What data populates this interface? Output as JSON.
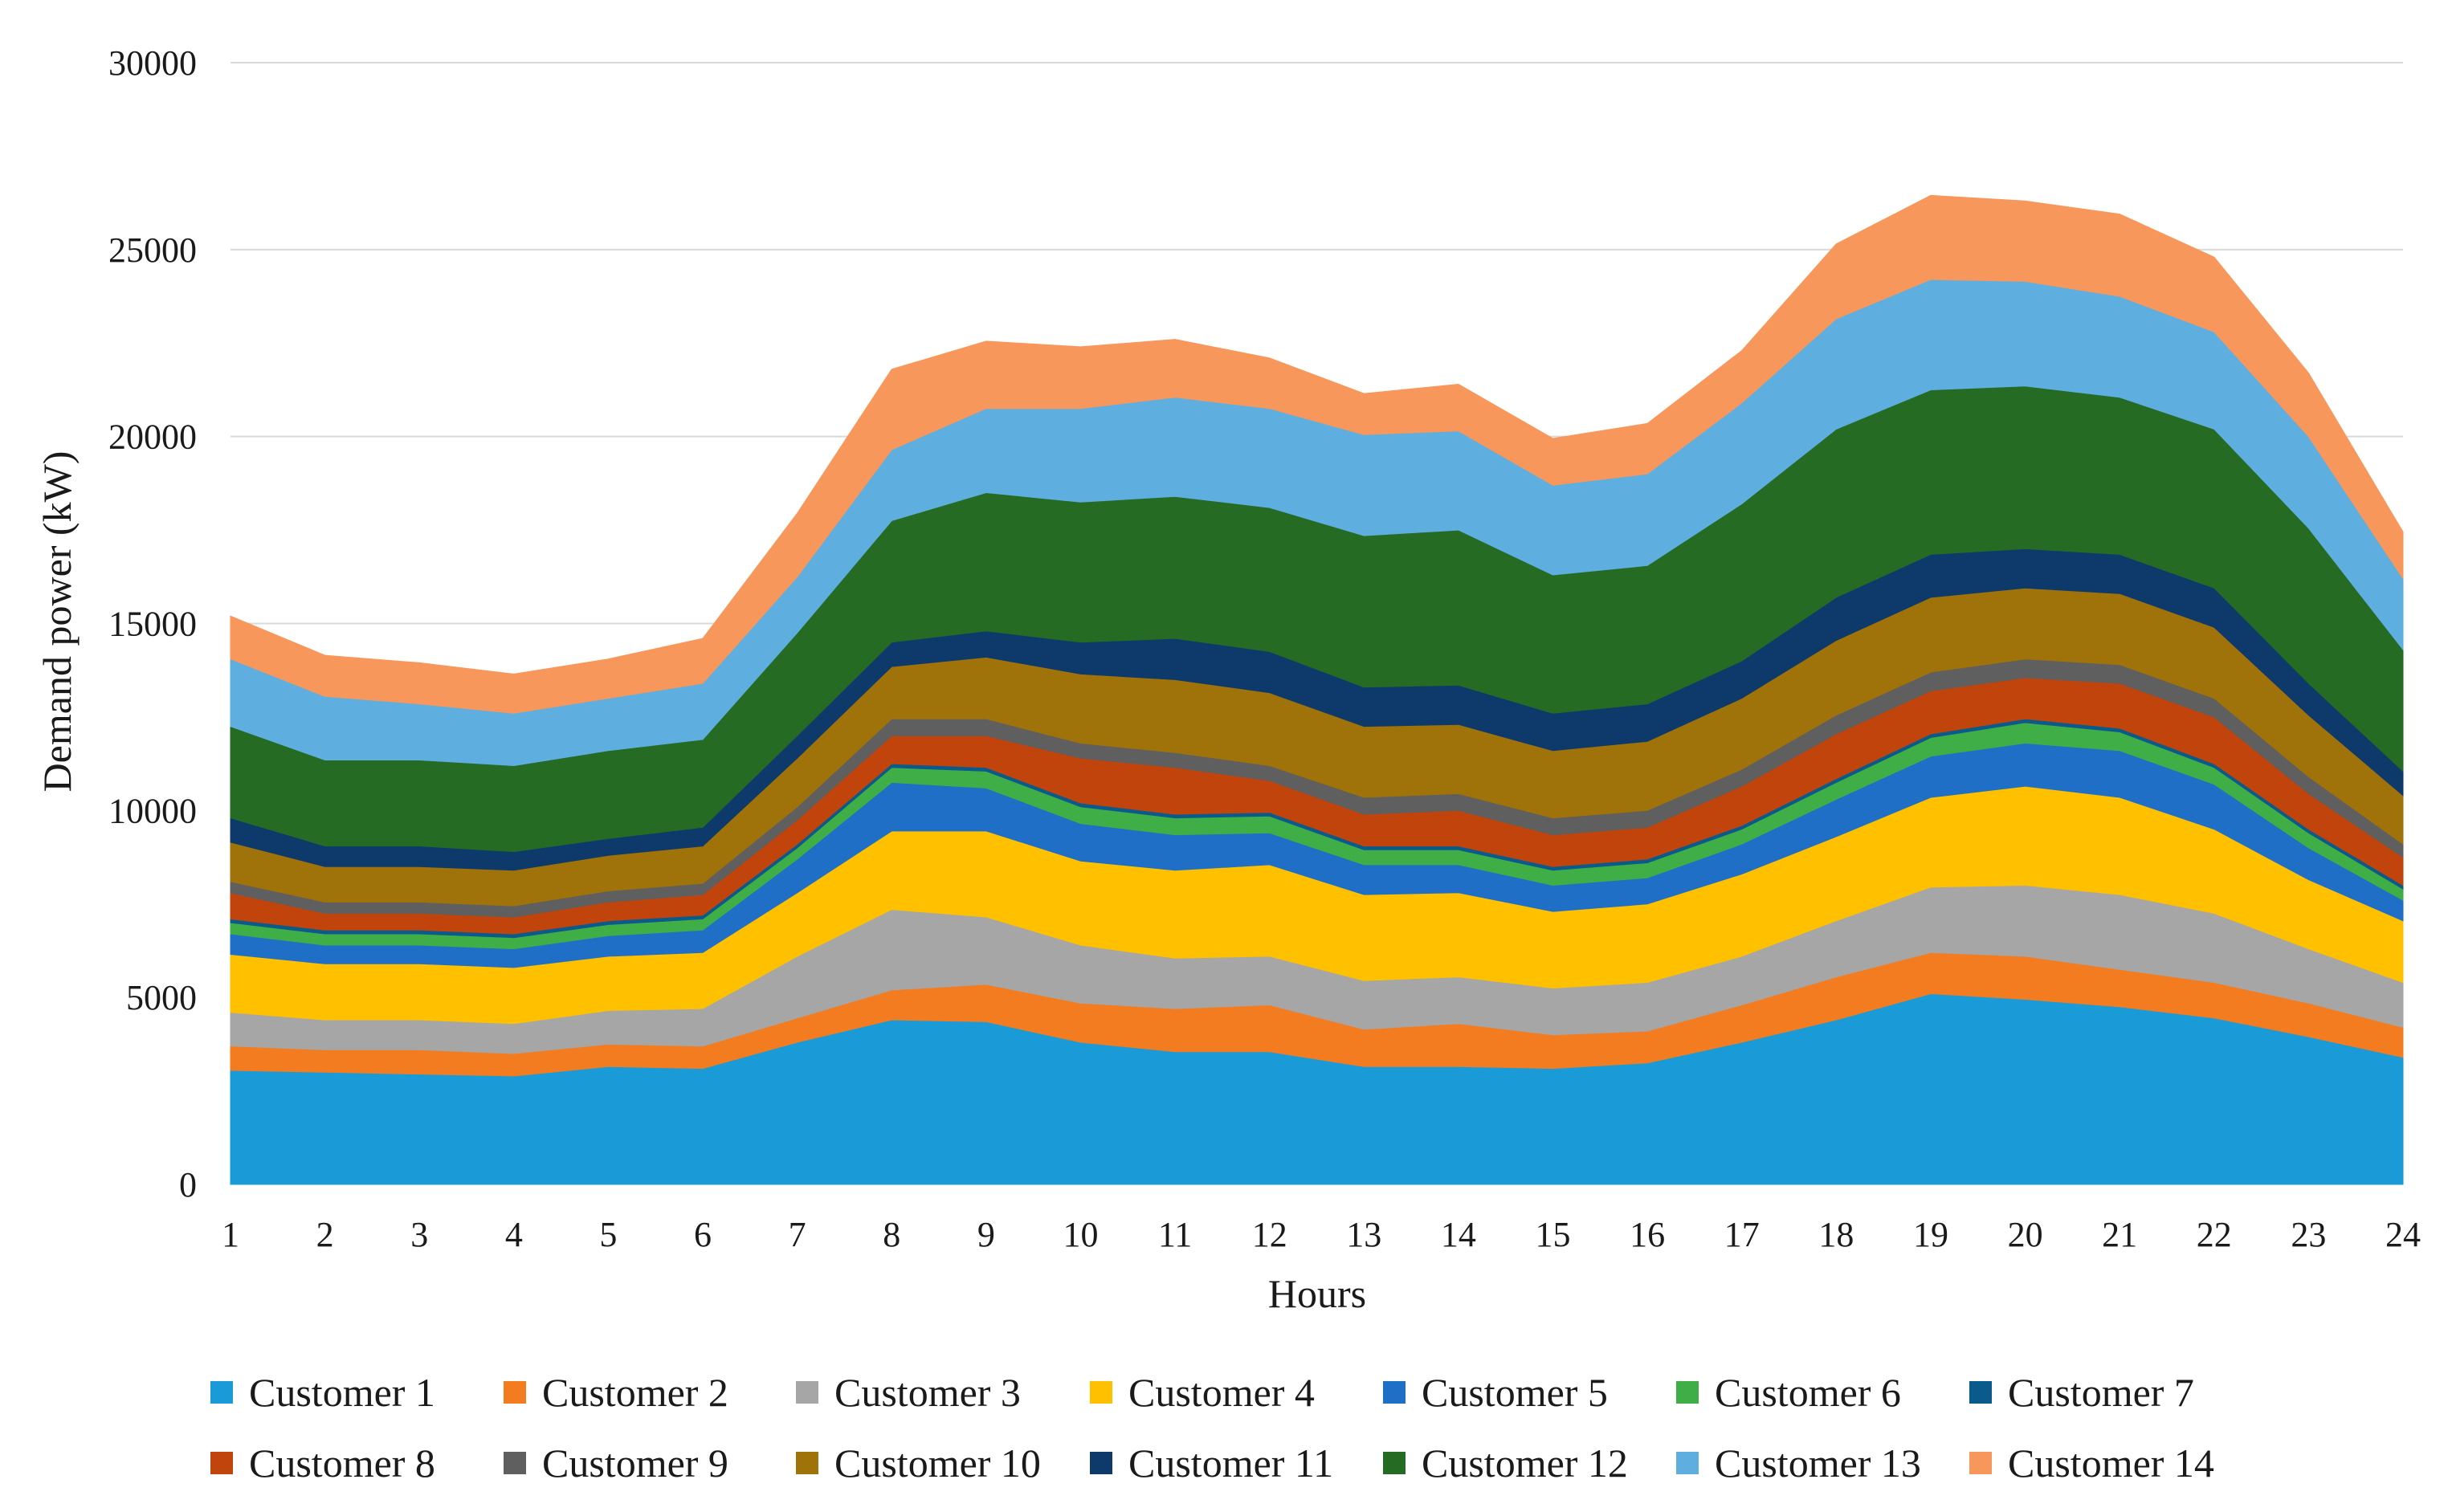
{
  "chart_data": {
    "type": "area",
    "stacked": true,
    "title": "",
    "xlabel": "Hours",
    "ylabel": "Demand power (kW)",
    "ylim": [
      0,
      30000
    ],
    "yticks": [
      0,
      5000,
      10000,
      15000,
      20000,
      25000,
      30000
    ],
    "grid": true,
    "legend_position": "bottom",
    "categories": [
      "1",
      "2",
      "3",
      "4",
      "5",
      "6",
      "7",
      "8",
      "9",
      "10",
      "11",
      "12",
      "13",
      "14",
      "15",
      "16",
      "17",
      "18",
      "19",
      "20",
      "21",
      "22",
      "23",
      "24"
    ],
    "series": [
      {
        "name": "Customer 1",
        "color": "#1a9bd7",
        "values": [
          3050,
          3000,
          2950,
          2900,
          3150,
          3100,
          3800,
          4400,
          4350,
          3800,
          3550,
          3550,
          3150,
          3150,
          3100,
          3250,
          3800,
          4400,
          5100,
          4950,
          4750,
          4450,
          3950,
          3400
        ]
      },
      {
        "name": "Customer 2",
        "color": "#f47c20",
        "values": [
          650,
          600,
          650,
          600,
          600,
          600,
          650,
          800,
          1000,
          1050,
          1150,
          1250,
          1000,
          1150,
          900,
          850,
          1000,
          1150,
          1100,
          1150,
          1000,
          950,
          900,
          800
        ]
      },
      {
        "name": "Customer 3",
        "color": "#a6a6a6",
        "values": [
          900,
          800,
          800,
          800,
          900,
          1000,
          1650,
          2150,
          1800,
          1550,
          1350,
          1300,
          1300,
          1250,
          1250,
          1300,
          1300,
          1500,
          1750,
          1900,
          2000,
          1850,
          1450,
          1200
        ]
      },
      {
        "name": "Customer 4",
        "color": "#ffc000",
        "values": [
          1550,
          1500,
          1500,
          1500,
          1450,
          1500,
          1700,
          2100,
          2300,
          2250,
          2350,
          2450,
          2300,
          2250,
          2050,
          2100,
          2200,
          2250,
          2400,
          2650,
          2600,
          2250,
          1850,
          1650
        ]
      },
      {
        "name": "Customer 5",
        "color": "#1f6fc6",
        "values": [
          550,
          500,
          500,
          500,
          550,
          600,
          900,
          1300,
          1150,
          1000,
          950,
          850,
          800,
          750,
          700,
          700,
          800,
          1000,
          1100,
          1150,
          1250,
          1200,
          850,
          550
        ]
      },
      {
        "name": "Customer 6",
        "color": "#3fae46",
        "values": [
          300,
          300,
          300,
          300,
          300,
          300,
          300,
          400,
          450,
          450,
          450,
          450,
          400,
          400,
          400,
          400,
          400,
          450,
          500,
          550,
          500,
          450,
          400,
          300
        ]
      },
      {
        "name": "Customer 7",
        "color": "#0b5a8c",
        "values": [
          100,
          100,
          100,
          100,
          100,
          100,
          100,
          100,
          100,
          100,
          100,
          100,
          100,
          100,
          100,
          100,
          100,
          100,
          100,
          100,
          100,
          100,
          100,
          100
        ]
      },
      {
        "name": "Customer 8",
        "color": "#c0440c",
        "values": [
          700,
          450,
          450,
          450,
          500,
          550,
          650,
          750,
          850,
          1200,
          1250,
          850,
          850,
          950,
          850,
          850,
          1050,
          1200,
          1150,
          1100,
          1200,
          1250,
          950,
          750
        ]
      },
      {
        "name": "Customer 9",
        "color": "#5f5f5f",
        "values": [
          300,
          300,
          300,
          300,
          300,
          300,
          350,
          450,
          450,
          400,
          400,
          400,
          450,
          450,
          450,
          450,
          450,
          500,
          500,
          500,
          500,
          500,
          450,
          350
        ]
      },
      {
        "name": "Customer 10",
        "color": "#a0720a",
        "values": [
          1050,
          950,
          950,
          950,
          950,
          1000,
          1300,
          1400,
          1650,
          1850,
          1950,
          1950,
          1900,
          1850,
          1800,
          1850,
          1900,
          2000,
          2000,
          1900,
          1900,
          1900,
          1650,
          1300
        ]
      },
      {
        "name": "Customer 11",
        "color": "#0d3a6b",
        "values": [
          650,
          550,
          550,
          500,
          450,
          500,
          600,
          650,
          700,
          850,
          1100,
          1100,
          1050,
          1050,
          1000,
          1000,
          1000,
          1150,
          1150,
          1050,
          1050,
          1050,
          850,
          650
        ]
      },
      {
        "name": "Customer 12",
        "color": "#256b24",
        "values": [
          2450,
          2300,
          2300,
          2300,
          2350,
          2350,
          2750,
          3250,
          3700,
          3750,
          3800,
          3850,
          4050,
          4150,
          3700,
          3700,
          4200,
          4500,
          4400,
          4350,
          4200,
          4250,
          4150,
          3250
        ]
      },
      {
        "name": "Customer 13",
        "color": "#5faee0",
        "values": [
          1800,
          1700,
          1500,
          1400,
          1400,
          1500,
          1500,
          1900,
          2250,
          2500,
          2650,
          2650,
          2700,
          2650,
          2400,
          2450,
          2700,
          2950,
          2950,
          2800,
          2700,
          2600,
          2450,
          1900
        ]
      },
      {
        "name": "Customer 14",
        "color": "#f8975b",
        "values": [
          1150,
          1100,
          1100,
          1050,
          1050,
          1200,
          1700,
          2150,
          1800,
          1650,
          1550,
          1350,
          1100,
          1250,
          1250,
          1350,
          1400,
          2000,
          2250,
          2150,
          2200,
          2000,
          1700,
          1250
        ]
      }
    ]
  }
}
